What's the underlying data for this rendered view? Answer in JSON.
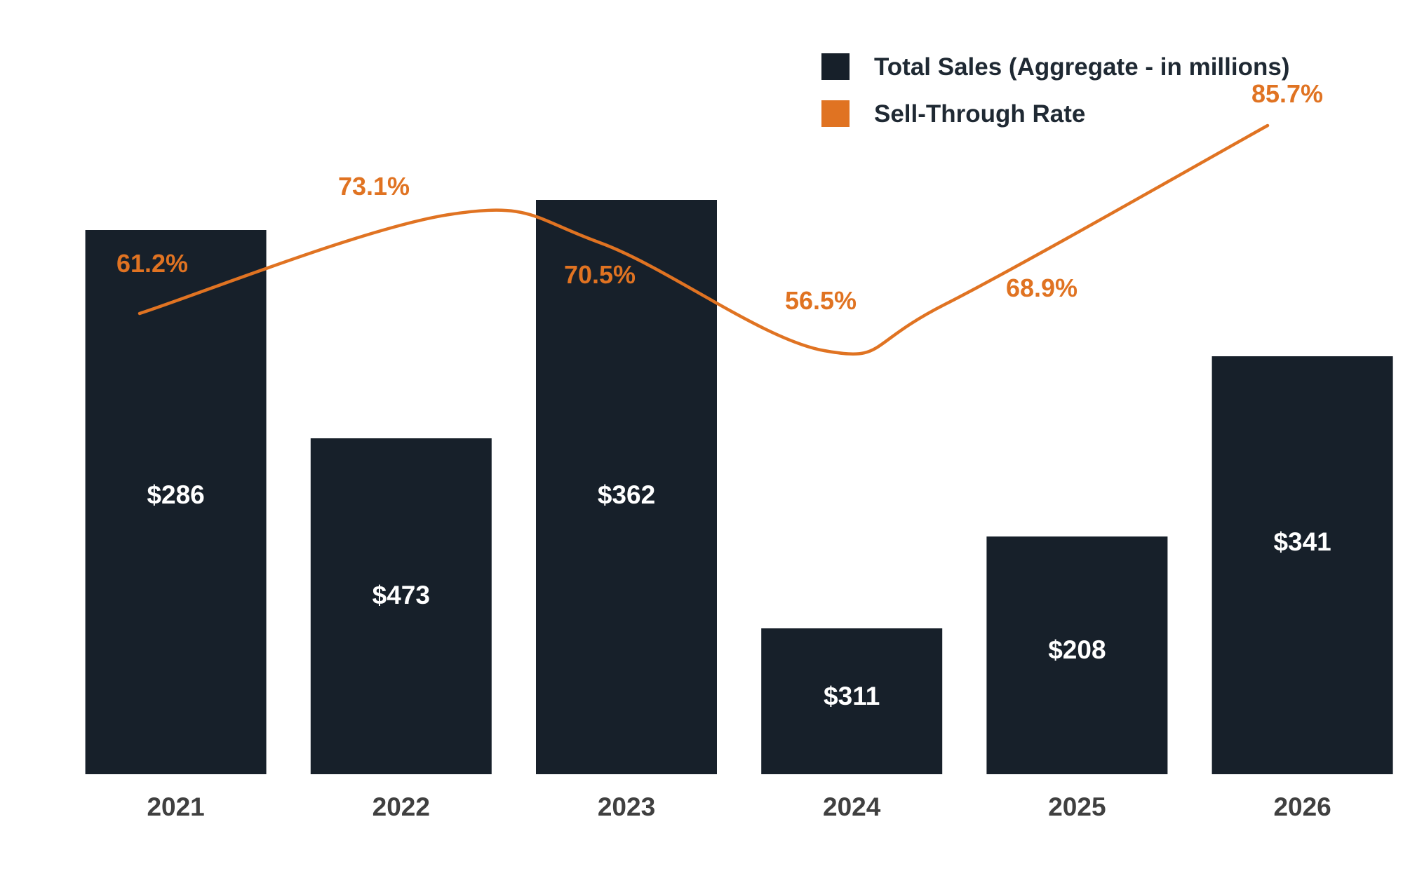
{
  "chart_data": {
    "type": "bar",
    "categories": [
      "2021",
      "2022",
      "2023",
      "2024",
      "2025",
      "2026"
    ],
    "series": [
      {
        "name": "Total Sales (Aggregate - in millions)",
        "type": "bar",
        "values": [
          286,
          473,
          362,
          311,
          208,
          341
        ],
        "labels": [
          "$286",
          "$473",
          "$362",
          "$311",
          "$208",
          "$341"
        ],
        "color": "#17202a"
      },
      {
        "name": "Sell-Through Rate",
        "type": "line",
        "smooth": true,
        "values": [
          61.2,
          73.1,
          70.5,
          56.5,
          68.9,
          85.7
        ],
        "labels": [
          "61.2%",
          "73.1%",
          "70.5%",
          "56.5%",
          "68.9%",
          "85.7%"
        ],
        "color": "#e07322"
      }
    ],
    "legend": {
      "position": "top-right"
    },
    "grid": false
  }
}
